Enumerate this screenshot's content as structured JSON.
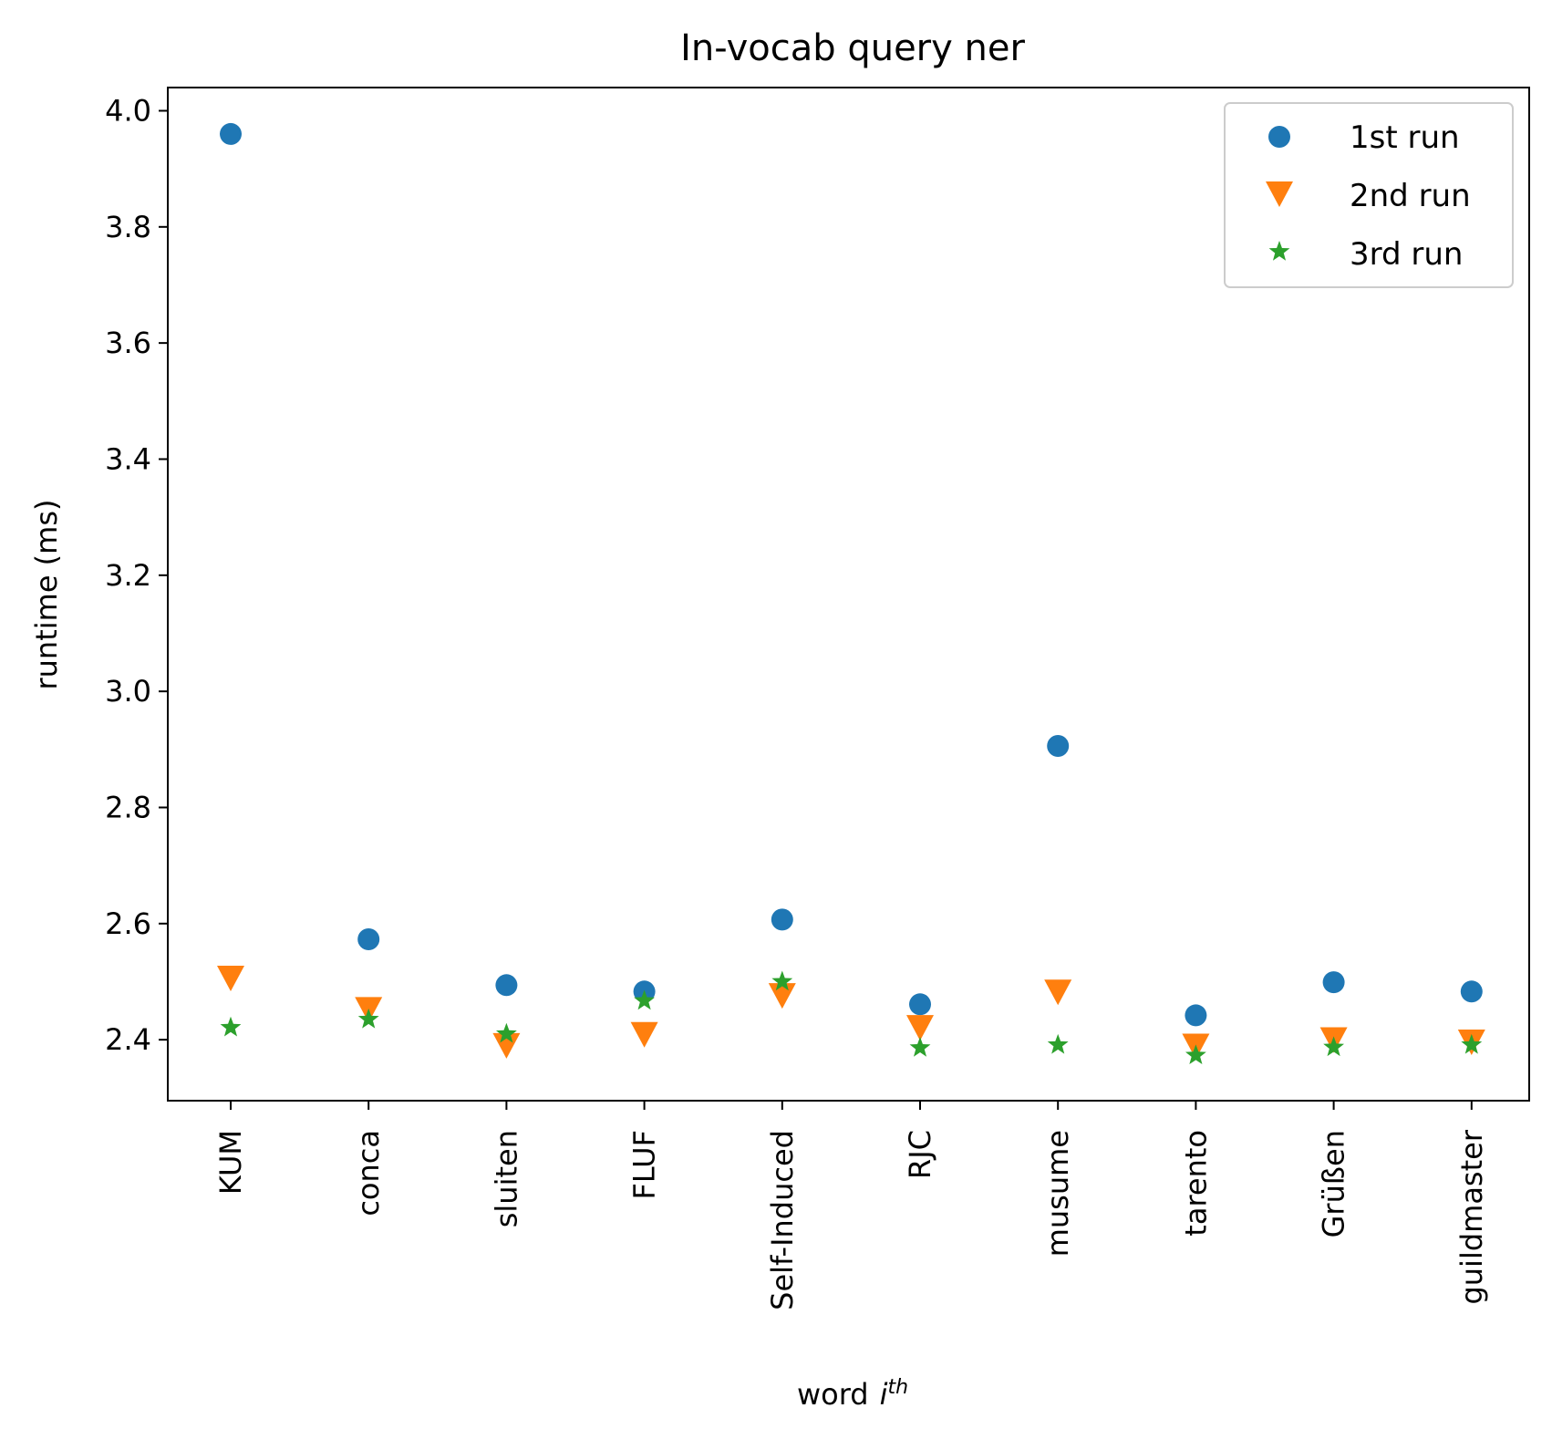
{
  "chart_data": {
    "type": "scatter",
    "title": "In-vocab query ner",
    "xlabel": "word",
    "xlabel_italic_base": "i",
    "xlabel_superscript": "th",
    "ylabel": "runtime (ms)",
    "categories": [
      "KUM",
      "conca",
      "sluiten",
      "FLUF",
      "Self-Induced",
      "RJC",
      "musume",
      "tarento",
      "Grüßen",
      "guildmaster"
    ],
    "ylim": [
      2.295,
      4.04
    ],
    "yticks": [
      2.4,
      2.6,
      2.8,
      3.0,
      3.2,
      3.4,
      3.6,
      3.8,
      4.0
    ],
    "ytick_labels": [
      "2.4",
      "2.6",
      "2.8",
      "3.0",
      "3.2",
      "3.4",
      "3.6",
      "3.8",
      "4.0"
    ],
    "legend_position": "top-right",
    "grid": false,
    "series": [
      {
        "name": "1st run",
        "marker": "circle",
        "color": "#1f77b4",
        "values": [
          3.96,
          2.573,
          2.494,
          2.483,
          2.607,
          2.461,
          2.906,
          2.442,
          2.499,
          2.483
        ]
      },
      {
        "name": "2nd run",
        "marker": "triangle-down",
        "color": "#ff7f0e",
        "values": [
          2.507,
          2.453,
          2.391,
          2.41,
          2.477,
          2.422,
          2.483,
          2.39,
          2.401,
          2.397
        ]
      },
      {
        "name": "3rd run",
        "marker": "star",
        "color": "#2ca02c",
        "values": [
          2.421,
          2.435,
          2.41,
          2.467,
          2.5,
          2.386,
          2.391,
          2.373,
          2.387,
          2.391
        ]
      }
    ]
  }
}
